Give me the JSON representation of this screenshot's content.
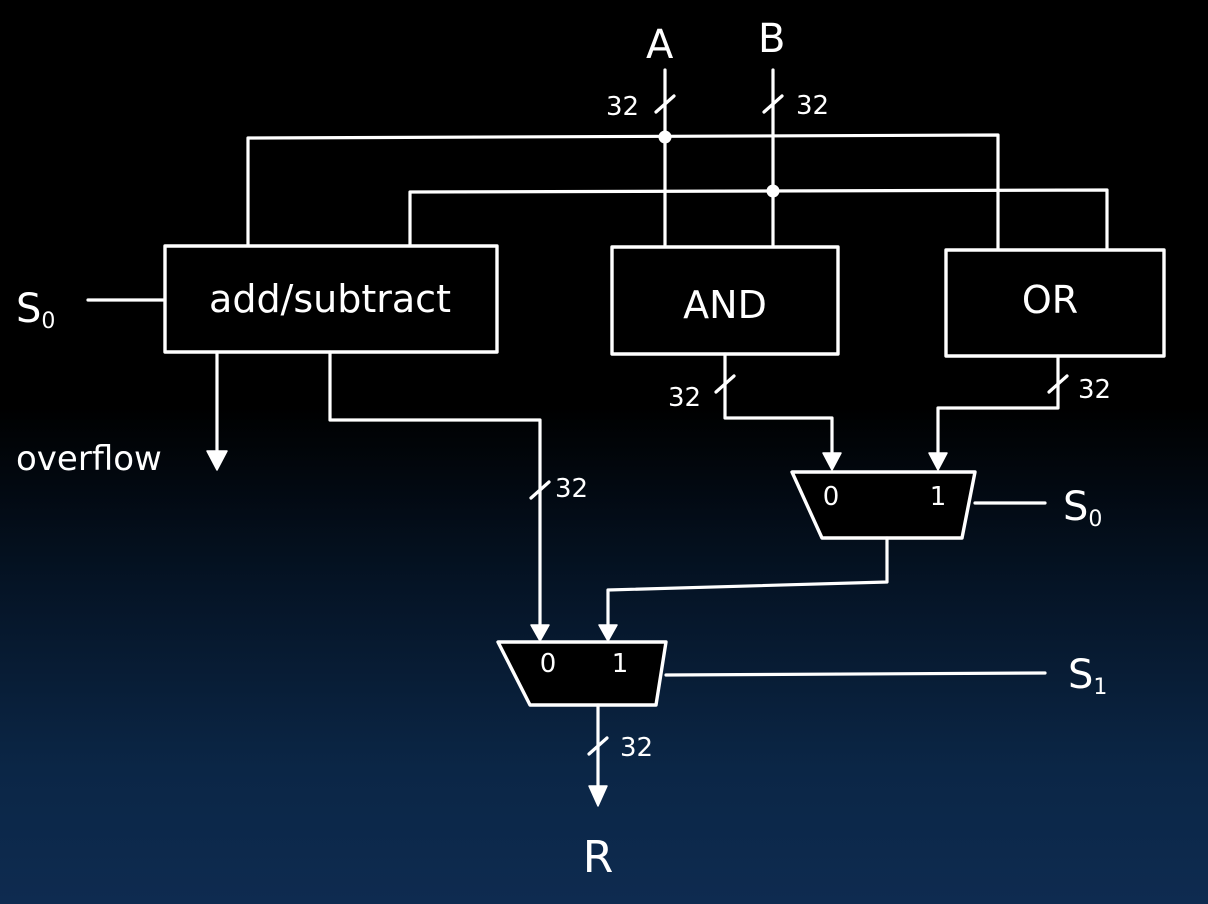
{
  "inputs": {
    "a": "A",
    "b": "B"
  },
  "blocks": {
    "add_subtract": "add/subtract",
    "and": "AND",
    "or": "OR"
  },
  "signals": {
    "s0_left": {
      "base": "S",
      "sub": "0"
    },
    "s0_right": {
      "base": "S",
      "sub": "0"
    },
    "s1": {
      "base": "S",
      "sub": "1"
    },
    "overflow": "overflow",
    "result": "R"
  },
  "bus_widths": {
    "a_in": "32",
    "b_in": "32",
    "and_out": "32",
    "or_out": "32",
    "add_out": "32",
    "result": "32"
  },
  "mux_small": {
    "in0": "0",
    "in1": "1"
  },
  "mux_big": {
    "in0": "0",
    "in1": "1"
  }
}
